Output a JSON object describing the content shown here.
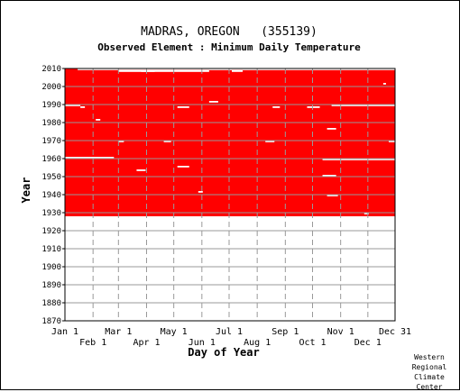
{
  "chart_data": {
    "type": "heatmap",
    "title": "MADRAS, OREGON   (355139)",
    "subtitle": "Observed Element : Minimum Daily Temperature",
    "xlabel": "Day of Year",
    "ylabel": "Year",
    "x_ticks_top": [
      "Jan 1",
      "Mar 1",
      "May 1",
      "Jul 1",
      "Sep 1",
      "Nov 1",
      "Dec 31"
    ],
    "x_ticks_bottom": [
      "Feb 1",
      "Apr 1",
      "Jun 1",
      "Aug 1",
      "Oct 1",
      "Dec 1"
    ],
    "x_tick_days_top": [
      1,
      60,
      121,
      182,
      244,
      305,
      365
    ],
    "x_tick_days_bottom": [
      32,
      91,
      152,
      213,
      274,
      335
    ],
    "y_ticks": [
      2010,
      2000,
      1990,
      1980,
      1970,
      1960,
      1950,
      1940,
      1930,
      1920,
      1910,
      1900,
      1890,
      1880,
      1870
    ],
    "ylim": [
      1870,
      2010
    ],
    "xlim": [
      1,
      365
    ],
    "record_start_year": 1928,
    "record_end_year": 2010,
    "data_color": "#ff0000",
    "missing_color": "#ffffff",
    "grid": true,
    "missing_segments": [
      {
        "year": 2009,
        "start_day": 15,
        "end_day": 365
      },
      {
        "year": 2008,
        "start_day": 85,
        "end_day": 100
      },
      {
        "year": 2008,
        "start_day": 185,
        "end_day": 197
      },
      {
        "year": 2008,
        "start_day": 60,
        "end_day": 160
      },
      {
        "year": 2001,
        "start_day": 352,
        "end_day": 355
      },
      {
        "year": 1989,
        "start_day": 1,
        "end_day": 18
      },
      {
        "year": 1988,
        "start_day": 18,
        "end_day": 23
      },
      {
        "year": 1988,
        "start_day": 125,
        "end_day": 138
      },
      {
        "year": 1988,
        "start_day": 230,
        "end_day": 238
      },
      {
        "year": 1988,
        "start_day": 268,
        "end_day": 282
      },
      {
        "year": 1989,
        "start_day": 295,
        "end_day": 365
      },
      {
        "year": 1991,
        "start_day": 160,
        "end_day": 170
      },
      {
        "year": 1981,
        "start_day": 35,
        "end_day": 40
      },
      {
        "year": 1976,
        "start_day": 290,
        "end_day": 300
      },
      {
        "year": 1969,
        "start_day": 60,
        "end_day": 66
      },
      {
        "year": 1969,
        "start_day": 110,
        "end_day": 118
      },
      {
        "year": 1969,
        "start_day": 222,
        "end_day": 232
      },
      {
        "year": 1969,
        "start_day": 358,
        "end_day": 365
      },
      {
        "year": 1960,
        "start_day": 1,
        "end_day": 55
      },
      {
        "year": 1959,
        "start_day": 285,
        "end_day": 365
      },
      {
        "year": 1955,
        "start_day": 125,
        "end_day": 138
      },
      {
        "year": 1953,
        "start_day": 80,
        "end_day": 90
      },
      {
        "year": 1950,
        "start_day": 285,
        "end_day": 300
      },
      {
        "year": 1941,
        "start_day": 148,
        "end_day": 153
      },
      {
        "year": 1939,
        "start_day": 290,
        "end_day": 302
      },
      {
        "year": 1929,
        "start_day": 331,
        "end_day": 336
      }
    ]
  },
  "credit": [
    "Western",
    "Regional",
    "Climate",
    "Center"
  ]
}
